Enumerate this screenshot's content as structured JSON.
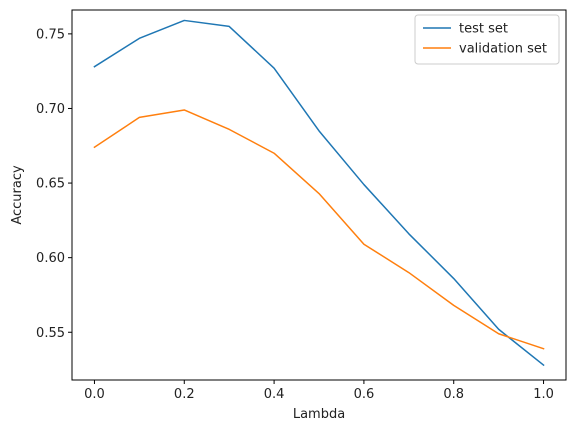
{
  "chart_data": {
    "type": "line",
    "title": "",
    "xlabel": "Lambda",
    "ylabel": "Accuracy",
    "xlim": [
      -0.05,
      1.05
    ],
    "ylim": [
      0.518,
      0.766
    ],
    "xticks": [
      0.0,
      0.2,
      0.4,
      0.6,
      0.8,
      1.0
    ],
    "xtick_labels": [
      "0.0",
      "0.2",
      "0.4",
      "0.6",
      "0.8",
      "1.0"
    ],
    "yticks": [
      0.55,
      0.6,
      0.65,
      0.7,
      0.75
    ],
    "ytick_labels": [
      "0.55",
      "0.60",
      "0.65",
      "0.70",
      "0.75"
    ],
    "grid": false,
    "legend_position": "top-right",
    "x": [
      0.0,
      0.1,
      0.2,
      0.3,
      0.4,
      0.5,
      0.6,
      0.7,
      0.8,
      0.9,
      1.0
    ],
    "series": [
      {
        "name": "test set",
        "color": "#1f77b4",
        "values": [
          0.728,
          0.747,
          0.759,
          0.755,
          0.727,
          0.685,
          0.649,
          0.616,
          0.586,
          0.552,
          0.528
        ]
      },
      {
        "name": "validation set",
        "color": "#ff7f0e",
        "values": [
          0.674,
          0.694,
          0.699,
          0.686,
          0.67,
          0.643,
          0.609,
          0.59,
          0.568,
          0.549,
          0.539
        ]
      }
    ]
  }
}
